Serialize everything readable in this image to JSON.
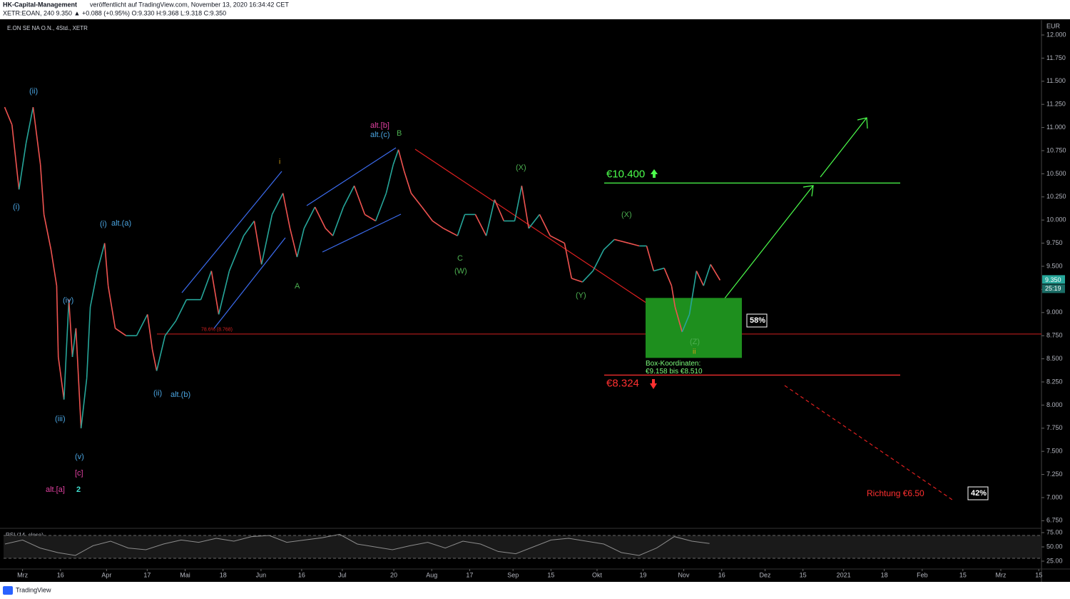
{
  "header": {
    "publisher": "HK-Capital-Management",
    "published": "veröffentlicht auf TradingView.com, November 13, 2020 16:34:42 CET",
    "quote": "XETR:EOAN, 240  9.350  ▲ +0.088 (+0.95%)  O:9.330  H:9.368  L:9.318  C:9.350"
  },
  "footer": "TradingView",
  "chart_data": {
    "type": "line",
    "title": "E.ON SE NA O.N., 4Std., XETR",
    "currency": "EUR",
    "up_color": "#26a69a",
    "down_color": "#ef5350",
    "x": [
      -6.6,
      -3.9,
      -1.3,
      1.3,
      3.9,
      6.6,
      7.9,
      10.5,
      12.6,
      13.2,
      15.3,
      17.1,
      18.4,
      19.7,
      21.6,
      23.7,
      25,
      27.6,
      30.3,
      31.6,
      34.2,
      38.2,
      42.1,
      46.1,
      47.9,
      49.5,
      52.6,
      56.6,
      60.5,
      65.8,
      69.7,
      72.4,
      76.3,
      81.6,
      85.5,
      88.2,
      92.1,
      96.1,
      98.7,
      101.3,
      103.9,
      107.9,
      111.8,
      114.5,
      118.4,
      122.4,
      126.3,
      130.3,
      134.2,
      136.8,
      138.7,
      140.8,
      143.4,
      147.4,
      151.3,
      155.3,
      160.5,
      163.2,
      167.1,
      171.1,
      174.2,
      177.6,
      181.6,
      184.2,
      186.8,
      190.8,
      194.7,
      200,
      202.6,
      206.6,
      210.5,
      214.5,
      218.4,
      223.7,
      227.6,
      230.3,
      232.9,
      236.8,
      239.5,
      240.8,
      243.4,
      246.1,
      248.7,
      251.3,
      253.9,
      257.4
    ],
    "values": [
      11.22,
      11.03,
      10.33,
      10.83,
      11.22,
      10.6,
      10.06,
      9.68,
      9.29,
      8.52,
      8.06,
      9.14,
      8.52,
      8.83,
      7.75,
      8.29,
      9.06,
      9.45,
      9.75,
      9.29,
      8.83,
      8.75,
      8.75,
      8.98,
      8.6,
      8.37,
      8.75,
      8.91,
      9.14,
      9.14,
      9.45,
      8.98,
      9.45,
      9.83,
      9.99,
      9.52,
      10.06,
      10.29,
      9.91,
      9.6,
      9.91,
      10.14,
      9.91,
      9.83,
      10.14,
      10.37,
      10.06,
      9.99,
      10.29,
      10.6,
      10.76,
      10.53,
      10.29,
      10.14,
      9.99,
      9.91,
      9.83,
      10.06,
      10.06,
      9.83,
      10.22,
      9.99,
      9.99,
      10.37,
      9.91,
      10.06,
      9.83,
      9.75,
      9.37,
      9.33,
      9.45,
      9.68,
      9.79,
      9.75,
      9.72,
      9.72,
      9.45,
      9.48,
      9.29,
      9.06,
      8.79,
      8.98,
      9.45,
      9.29,
      9.52,
      9.35
    ],
    "xlim": [
      -7,
      376
    ],
    "ylim": [
      6.668,
      12.162
    ],
    "xticks": [
      {
        "value": 0,
        "label": "Mrz"
      },
      {
        "value": 14,
        "label": "16"
      },
      {
        "value": 31,
        "label": "Apr"
      },
      {
        "value": 46,
        "label": "17"
      },
      {
        "value": 60,
        "label": "Mai"
      },
      {
        "value": 74,
        "label": "18"
      },
      {
        "value": 88,
        "label": "Jun"
      },
      {
        "value": 103,
        "label": "16"
      },
      {
        "value": 118,
        "label": "Jul"
      },
      {
        "value": 137,
        "label": "20"
      },
      {
        "value": 151,
        "label": "Aug"
      },
      {
        "value": 165,
        "label": "17"
      },
      {
        "value": 181,
        "label": "Sep"
      },
      {
        "value": 195,
        "label": "15"
      },
      {
        "value": 212,
        "label": "Okt"
      },
      {
        "value": 229,
        "label": "19"
      },
      {
        "value": 244,
        "label": "Nov"
      },
      {
        "value": 258,
        "label": "16"
      },
      {
        "value": 274,
        "label": "Dez"
      },
      {
        "value": 288,
        "label": "15"
      },
      {
        "value": 303,
        "label": "2021"
      },
      {
        "value": 318,
        "label": "18"
      },
      {
        "value": 332,
        "label": "Feb"
      },
      {
        "value": 347,
        "label": "15"
      },
      {
        "value": 361,
        "label": "Mrz"
      },
      {
        "value": 375,
        "label": "15"
      }
    ],
    "yticks": [
      {
        "value": 6.75,
        "label": "6.750"
      },
      {
        "value": 7,
        "label": "7.000"
      },
      {
        "value": 7.25,
        "label": "7.250"
      },
      {
        "value": 7.5,
        "label": "7.500"
      },
      {
        "value": 7.75,
        "label": "7.750"
      },
      {
        "value": 8,
        "label": "8.000"
      },
      {
        "value": 8.25,
        "label": "8.250"
      },
      {
        "value": 8.5,
        "label": "8.500"
      },
      {
        "value": 8.75,
        "label": "8.750"
      },
      {
        "value": 9,
        "label": "9.000"
      },
      {
        "value": 9.25,
        "label": "9.250"
      },
      {
        "value": 9.5,
        "label": "9.500"
      },
      {
        "value": 9.75,
        "label": "9.750"
      },
      {
        "value": 10,
        "label": "10.000"
      },
      {
        "value": 10.25,
        "label": "10.250"
      },
      {
        "value": 10.5,
        "label": "10.500"
      },
      {
        "value": 10.75,
        "label": "10.750"
      },
      {
        "value": 11,
        "label": "11.000"
      },
      {
        "value": 11.25,
        "label": "11.250"
      },
      {
        "value": 11.5,
        "label": "11.500"
      },
      {
        "value": 11.75,
        "label": "11.750"
      },
      {
        "value": 12,
        "label": "12.000"
      }
    ],
    "last_price": {
      "value": 9.35,
      "label": "9.350"
    },
    "countdown": "25:19",
    "levels": [
      {
        "value": 10.4,
        "label": "€10.400",
        "color": "#4cff4c"
      },
      {
        "value": 8.324,
        "label": "€8.324",
        "color": "#ff3030"
      }
    ],
    "fib_level": {
      "value": 8.768,
      "label": "78.6% (8.768)",
      "color": "#d02020"
    },
    "box": {
      "top": 9.158,
      "bottom": 8.51,
      "title": "Box-Koordinaten:",
      "label": "€9.158 bis €8.510",
      "color": "#1e8f1e"
    },
    "probabilities": [
      {
        "value": 58,
        "label": "58%"
      },
      {
        "value": 42,
        "label": "42%"
      }
    ],
    "target": "Richtung €6.50",
    "annotations": [
      "(ii)",
      "(i)",
      "(i)",
      "alt.(a)",
      "(iv)",
      "(iii)",
      "(v)",
      "[c]",
      "alt.[a]",
      "2",
      "(ii)",
      "alt.(b)",
      "i",
      "A",
      "alt.[b]",
      "alt.(c)",
      "B",
      "C",
      "(W)",
      "(X)",
      "(X)",
      "(Y)",
      "(Z)",
      "ii"
    ],
    "rsi": {
      "title": "RSI (14, close)",
      "color": "#8c8c8c",
      "x": [
        -6.5,
        0,
        6.5,
        13,
        19.5,
        26,
        32.5,
        39,
        45.5,
        52,
        58.5,
        65,
        71.5,
        78,
        84.5,
        91,
        97.5,
        104,
        110.5,
        117,
        123.5,
        130,
        136.5,
        143,
        149.5,
        156,
        162.5,
        169,
        175.5,
        182,
        188.5,
        195,
        201.5,
        208,
        214.5,
        221,
        227.5,
        234,
        240.5,
        247,
        253.5
      ],
      "values": [
        55,
        62,
        48,
        40,
        35,
        52,
        60,
        48,
        45,
        55,
        62,
        58,
        65,
        60,
        68,
        70,
        58,
        62,
        66,
        72,
        55,
        50,
        45,
        52,
        58,
        48,
        60,
        55,
        42,
        38,
        50,
        62,
        65,
        60,
        55,
        40,
        35,
        48,
        68,
        60,
        56
      ],
      "ylim": [
        13.75,
        80
      ],
      "yticks": [
        {
          "value": 25,
          "label": "25.00"
        },
        {
          "value": 50,
          "label": "50.00"
        },
        {
          "value": 75,
          "label": "75.00"
        }
      ],
      "bands": [
        30,
        70
      ]
    }
  }
}
